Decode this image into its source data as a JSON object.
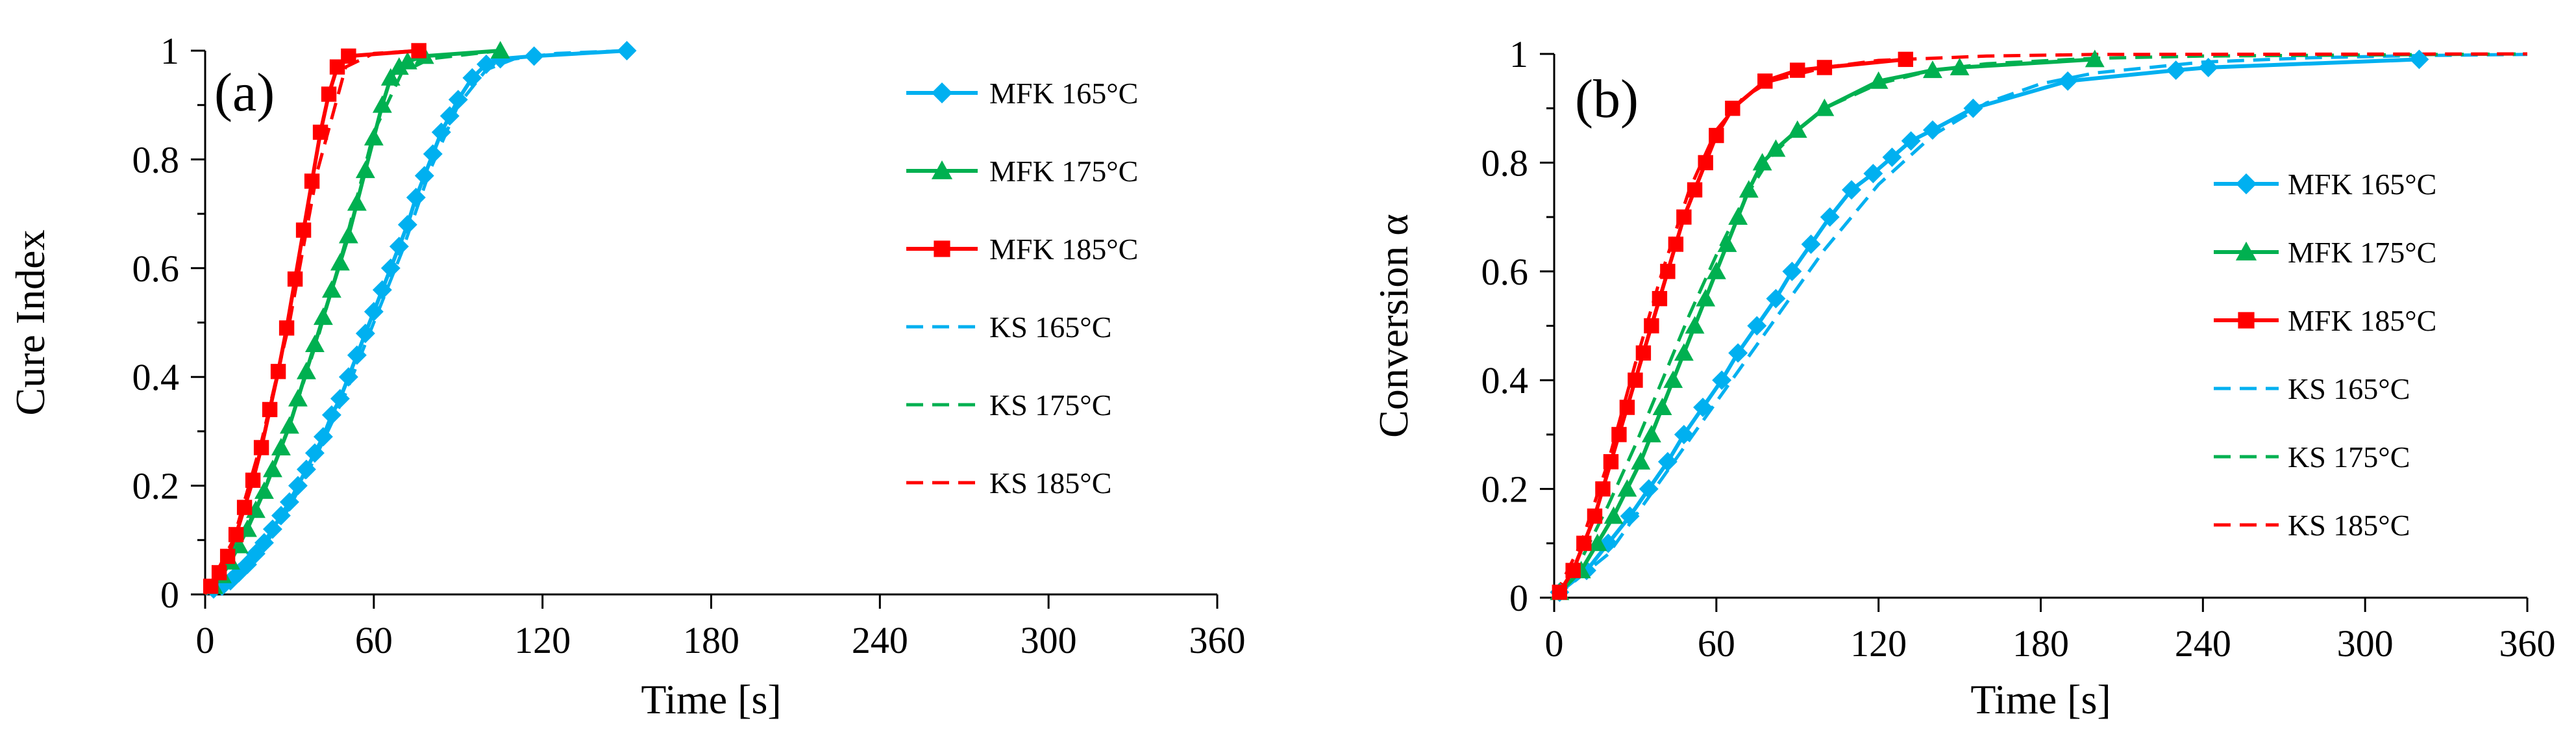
{
  "chart_data": [
    {
      "type": "line",
      "panel_label": "(a)",
      "xlabel": "Time [s]",
      "ylabel": "Cure Index",
      "xlim": [
        0,
        360
      ],
      "ylim": [
        0,
        1
      ],
      "xticks": [
        0,
        60,
        120,
        180,
        240,
        300,
        360
      ],
      "yticks": [
        0,
        0.2,
        0.4,
        0.6,
        0.8,
        1
      ],
      "ytick_labels": [
        "0",
        "0.2",
        "0.4",
        "0.6",
        "0.8",
        "1"
      ],
      "grid": false,
      "legend_position": "right",
      "series": [
        {
          "name": "MFK 165°C",
          "color": "#00b0f0",
          "marker": "diamond",
          "dashed": false,
          "x": [
            3,
            6,
            9,
            12,
            15,
            18,
            21,
            24,
            27,
            30,
            33,
            36,
            39,
            42,
            45,
            48,
            51,
            54,
            57,
            60,
            63,
            66,
            69,
            72,
            75,
            78,
            81,
            84,
            87,
            90,
            95,
            100,
            105,
            117,
            150
          ],
          "y": [
            0.01,
            0.015,
            0.025,
            0.04,
            0.055,
            0.075,
            0.095,
            0.12,
            0.145,
            0.17,
            0.2,
            0.23,
            0.26,
            0.29,
            0.33,
            0.36,
            0.4,
            0.44,
            0.48,
            0.52,
            0.56,
            0.6,
            0.64,
            0.68,
            0.73,
            0.77,
            0.81,
            0.85,
            0.88,
            0.91,
            0.95,
            0.975,
            0.985,
            0.99,
            1.0
          ]
        },
        {
          "name": "MFK 175°C",
          "color": "#00b050",
          "marker": "triangle",
          "dashed": false,
          "x": [
            3,
            6,
            9,
            12,
            15,
            18,
            21,
            24,
            27,
            30,
            33,
            36,
            39,
            42,
            45,
            48,
            51,
            54,
            57,
            60,
            63,
            66,
            69,
            72,
            78,
            105
          ],
          "y": [
            0.015,
            0.035,
            0.06,
            0.09,
            0.12,
            0.155,
            0.19,
            0.23,
            0.27,
            0.31,
            0.36,
            0.41,
            0.46,
            0.51,
            0.56,
            0.61,
            0.66,
            0.72,
            0.78,
            0.84,
            0.9,
            0.95,
            0.97,
            0.98,
            0.99,
            1.0
          ]
        },
        {
          "name": "MFK 185°C",
          "color": "#ff0000",
          "marker": "square",
          "dashed": false,
          "x": [
            2,
            5,
            8,
            11,
            14,
            17,
            20,
            23,
            26,
            29,
            32,
            35,
            38,
            41,
            44,
            47,
            51,
            76
          ],
          "y": [
            0.015,
            0.04,
            0.07,
            0.11,
            0.16,
            0.21,
            0.27,
            0.34,
            0.41,
            0.49,
            0.58,
            0.67,
            0.76,
            0.85,
            0.92,
            0.97,
            0.99,
            1.0
          ]
        },
        {
          "name": "KS 165°C",
          "color": "#00b0f0",
          "marker": "none",
          "dashed": true,
          "x": [
            0,
            10,
            20,
            30,
            40,
            50,
            60,
            70,
            80,
            90,
            100,
            110,
            125,
            150
          ],
          "y": [
            0,
            0.03,
            0.08,
            0.16,
            0.26,
            0.37,
            0.5,
            0.63,
            0.78,
            0.9,
            0.965,
            0.985,
            0.995,
            1.0
          ]
        },
        {
          "name": "KS 175°C",
          "color": "#00b050",
          "marker": "none",
          "dashed": true,
          "x": [
            0,
            10,
            20,
            30,
            40,
            50,
            60,
            70,
            80,
            105
          ],
          "y": [
            0,
            0.07,
            0.18,
            0.31,
            0.47,
            0.65,
            0.85,
            0.96,
            0.985,
            1.0
          ]
        },
        {
          "name": "KS 185°C",
          "color": "#ff0000",
          "marker": "none",
          "dashed": true,
          "x": [
            0,
            10,
            20,
            30,
            40,
            50,
            60,
            76
          ],
          "y": [
            0,
            0.1,
            0.28,
            0.5,
            0.78,
            0.97,
            0.995,
            1.0
          ]
        }
      ]
    },
    {
      "type": "line",
      "panel_label": "(b)",
      "xlabel": "Time [s]",
      "ylabel": "Conversion α",
      "xlim": [
        0,
        360
      ],
      "ylim": [
        0,
        1
      ],
      "xticks": [
        0,
        60,
        120,
        180,
        240,
        300,
        360
      ],
      "yticks": [
        0,
        0.2,
        0.4,
        0.6,
        0.8,
        1
      ],
      "ytick_labels": [
        "0",
        "0.2",
        "0.4",
        "0.6",
        "0.8",
        "1"
      ],
      "grid": false,
      "legend_position": "right",
      "series": [
        {
          "name": "MFK 165°C",
          "color": "#00b0f0",
          "marker": "diamond",
          "dashed": false,
          "x": [
            2,
            12,
            20,
            28,
            35,
            42,
            48,
            55,
            62,
            68,
            75,
            82,
            88,
            95,
            102,
            110,
            118,
            125,
            132,
            140,
            155,
            190,
            230,
            242,
            320
          ],
          "y": [
            0.01,
            0.05,
            0.1,
            0.15,
            0.2,
            0.25,
            0.3,
            0.35,
            0.4,
            0.45,
            0.5,
            0.55,
            0.6,
            0.65,
            0.7,
            0.75,
            0.78,
            0.81,
            0.84,
            0.86,
            0.9,
            0.95,
            0.97,
            0.975,
            0.99
          ]
        },
        {
          "name": "MFK 175°C",
          "color": "#00b050",
          "marker": "triangle",
          "dashed": false,
          "x": [
            2,
            10,
            16,
            22,
            27,
            32,
            36,
            40,
            44,
            48,
            52,
            56,
            60,
            64,
            68,
            72,
            77,
            82,
            90,
            100,
            120,
            140,
            150,
            200
          ],
          "y": [
            0.01,
            0.05,
            0.1,
            0.15,
            0.2,
            0.25,
            0.3,
            0.35,
            0.4,
            0.45,
            0.5,
            0.55,
            0.6,
            0.65,
            0.7,
            0.75,
            0.8,
            0.825,
            0.86,
            0.9,
            0.95,
            0.97,
            0.975,
            0.99
          ]
        },
        {
          "name": "MFK 185°C",
          "color": "#ff0000",
          "marker": "square",
          "dashed": false,
          "x": [
            2,
            7,
            11,
            15,
            18,
            21,
            24,
            27,
            30,
            33,
            36,
            39,
            42,
            45,
            48,
            52,
            56,
            60,
            66,
            78,
            90,
            100,
            130
          ],
          "y": [
            0.01,
            0.05,
            0.1,
            0.15,
            0.2,
            0.25,
            0.3,
            0.35,
            0.4,
            0.45,
            0.5,
            0.55,
            0.6,
            0.65,
            0.7,
            0.75,
            0.8,
            0.85,
            0.9,
            0.95,
            0.97,
            0.975,
            0.99
          ]
        },
        {
          "name": "KS 165°C",
          "color": "#00b0f0",
          "marker": "none",
          "dashed": true,
          "x": [
            0,
            20,
            40,
            60,
            80,
            100,
            120,
            140,
            160,
            180,
            200,
            240,
            280,
            320,
            360
          ],
          "y": [
            0,
            0.08,
            0.22,
            0.36,
            0.5,
            0.64,
            0.76,
            0.85,
            0.91,
            0.945,
            0.965,
            0.985,
            0.993,
            0.997,
            0.999
          ]
        },
        {
          "name": "KS 175°C",
          "color": "#00b050",
          "marker": "none",
          "dashed": true,
          "x": [
            0,
            10,
            20,
            30,
            40,
            50,
            60,
            70,
            80,
            90,
            100,
            120,
            140,
            160,
            200,
            240,
            360
          ],
          "y": [
            0,
            0.07,
            0.17,
            0.28,
            0.4,
            0.52,
            0.63,
            0.73,
            0.81,
            0.86,
            0.9,
            0.945,
            0.97,
            0.982,
            0.992,
            0.996,
            1.0
          ]
        },
        {
          "name": "KS 185°C",
          "color": "#ff0000",
          "marker": "none",
          "dashed": true,
          "x": [
            0,
            10,
            20,
            30,
            40,
            50,
            60,
            70,
            80,
            100,
            120,
            160,
            200,
            360
          ],
          "y": [
            0,
            0.1,
            0.25,
            0.43,
            0.6,
            0.75,
            0.86,
            0.92,
            0.95,
            0.975,
            0.988,
            0.996,
            0.999,
            1.0
          ]
        }
      ]
    }
  ]
}
